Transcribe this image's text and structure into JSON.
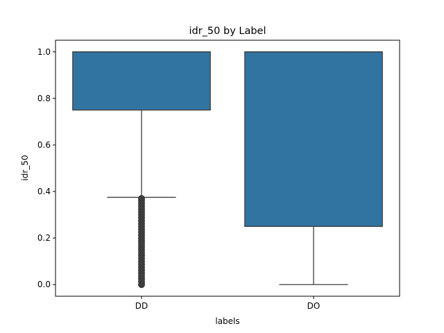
{
  "chart_data": {
    "type": "box",
    "title": "idr_50 by Label",
    "xlabel": "labels",
    "ylabel": "idr_50",
    "categories": [
      "DD",
      "DO"
    ],
    "ylim": [
      -0.05,
      1.05
    ],
    "yticks": [
      "0.0",
      "0.2",
      "0.4",
      "0.6",
      "0.8",
      "1.0"
    ],
    "grid": false,
    "box_color": "#3274a1",
    "edge_color": "#3d3d3d",
    "boxes": [
      {
        "category": "DD",
        "q1": 0.75,
        "median": 1.0,
        "q3": 1.0,
        "whisker_low": 0.375,
        "whisker_high": 1.0,
        "outliers": [
          0.0,
          0.0125,
          0.025,
          0.0375,
          0.05,
          0.0625,
          0.075,
          0.0875,
          0.1,
          0.1125,
          0.125,
          0.1375,
          0.15,
          0.1625,
          0.175,
          0.1875,
          0.2,
          0.2125,
          0.225,
          0.2375,
          0.25,
          0.2625,
          0.275,
          0.2875,
          0.3,
          0.3125,
          0.325,
          0.3375,
          0.35,
          0.3625,
          0.37
        ]
      },
      {
        "category": "DO",
        "q1": 0.25,
        "median": 1.0,
        "q3": 1.0,
        "whisker_low": 0.0,
        "whisker_high": 1.0,
        "outliers": []
      }
    ]
  }
}
